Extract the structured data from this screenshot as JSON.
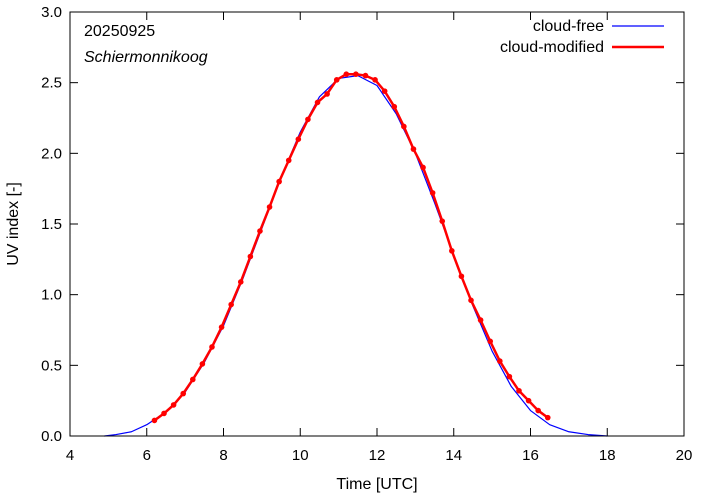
{
  "chart_data": {
    "type": "line",
    "title": "",
    "annotations": [
      "20250925",
      "Schiermonnikoog"
    ],
    "xlabel": "Time  [UTC]",
    "ylabel": "UV index  [-]",
    "xlim": [
      4,
      20
    ],
    "ylim": [
      0.0,
      3.0
    ],
    "x_ticks": [
      "4",
      "6",
      "8",
      "10",
      "12",
      "14",
      "16",
      "18",
      "20"
    ],
    "y_ticks": [
      "0.0",
      "0.5",
      "1.0",
      "1.5",
      "2.0",
      "2.5",
      "3.0"
    ],
    "legend_position": "top-right",
    "series": [
      {
        "name": "cloud-free",
        "color": "#0000ff",
        "x": [
          4.9,
          5.2,
          5.6,
          6.0,
          6.5,
          7.0,
          7.5,
          8.0,
          8.5,
          9.0,
          9.5,
          10.0,
          10.5,
          11.0,
          11.5,
          12.0,
          12.5,
          13.0,
          13.5,
          14.0,
          14.5,
          15.0,
          15.5,
          16.0,
          16.5,
          17.0,
          17.5,
          18.0
        ],
        "y": [
          0.0,
          0.01,
          0.03,
          0.08,
          0.17,
          0.31,
          0.52,
          0.78,
          1.11,
          1.47,
          1.83,
          2.15,
          2.4,
          2.53,
          2.55,
          2.48,
          2.28,
          2.0,
          1.65,
          1.28,
          0.92,
          0.6,
          0.35,
          0.18,
          0.08,
          0.03,
          0.01,
          0.0
        ]
      },
      {
        "name": "cloud-modified",
        "color": "#ff0000",
        "markers": true,
        "x": [
          6.2,
          6.45,
          6.7,
          6.95,
          7.2,
          7.45,
          7.7,
          7.95,
          8.2,
          8.45,
          8.7,
          8.95,
          9.2,
          9.45,
          9.7,
          9.95,
          10.2,
          10.45,
          10.7,
          10.95,
          11.2,
          11.45,
          11.7,
          11.95,
          12.2,
          12.45,
          12.7,
          12.95,
          13.2,
          13.45,
          13.7,
          13.95,
          14.2,
          14.45,
          14.7,
          14.95,
          15.2,
          15.45,
          15.7,
          15.95,
          16.2,
          16.45
        ],
        "y": [
          0.11,
          0.16,
          0.22,
          0.3,
          0.4,
          0.51,
          0.63,
          0.77,
          0.93,
          1.09,
          1.27,
          1.45,
          1.62,
          1.8,
          1.95,
          2.1,
          2.24,
          2.36,
          2.42,
          2.52,
          2.56,
          2.56,
          2.55,
          2.52,
          2.44,
          2.33,
          2.19,
          2.03,
          1.9,
          1.72,
          1.52,
          1.31,
          1.13,
          0.96,
          0.82,
          0.67,
          0.53,
          0.42,
          0.32,
          0.25,
          0.18,
          0.13
        ]
      }
    ]
  }
}
